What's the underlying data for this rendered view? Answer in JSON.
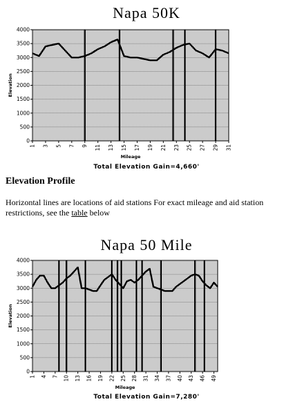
{
  "chart_data": [
    {
      "type": "line",
      "title": "Napa 50K",
      "subtitle": "Total Elevation Gain=4,660'",
      "xlabel": "Mileage",
      "ylabel": "Elevation",
      "ylim": [
        0,
        4000
      ],
      "yticks": [
        0,
        500,
        1000,
        1500,
        2000,
        2500,
        3000,
        3500,
        4000
      ],
      "xlim": [
        1,
        31
      ],
      "xticks": [
        1,
        3,
        5,
        7,
        9,
        11,
        13,
        15,
        17,
        19,
        21,
        23,
        25,
        27,
        29,
        31
      ],
      "grid": true,
      "series": [
        {
          "x": [
            1,
            2,
            3,
            4,
            5,
            6,
            7,
            8,
            9,
            10,
            11,
            12,
            13,
            14,
            15,
            16,
            17,
            18,
            19,
            20,
            21,
            22,
            23,
            24,
            25,
            26,
            27,
            28,
            29,
            30,
            31
          ],
          "y": [
            3150,
            3050,
            3400,
            3450,
            3500,
            3250,
            3000,
            3000,
            3050,
            3150,
            3300,
            3400,
            3550,
            3650,
            3050,
            3000,
            3000,
            2950,
            2900,
            2900,
            3100,
            3200,
            3350,
            3450,
            3500,
            3250,
            3150,
            3000,
            3300,
            3250,
            3150
          ]
        }
      ],
      "aid_station_miles": [
        9,
        14.3,
        22.5,
        24.3,
        29
      ]
    },
    {
      "type": "line",
      "title": "Napa 50 Mile",
      "subtitle": "Total Elevation Gain=7,280'",
      "xlabel": "Mileage",
      "ylabel": "Elevation",
      "ylim": [
        0,
        4000
      ],
      "yticks": [
        0,
        500,
        1000,
        1500,
        2000,
        2500,
        3000,
        3500,
        4000
      ],
      "xlim": [
        1,
        50
      ],
      "xticks": [
        1,
        4,
        7,
        10,
        13,
        16,
        19,
        22,
        25,
        28,
        31,
        34,
        37,
        40,
        43,
        46,
        49
      ],
      "grid": true,
      "series": [
        {
          "x": [
            1,
            2,
            3,
            4,
            5,
            6,
            7,
            8,
            9,
            10,
            11,
            12,
            13,
            14,
            15,
            16,
            17,
            18,
            19,
            20,
            21,
            22,
            23,
            24,
            25,
            26,
            27,
            28,
            29,
            30,
            31,
            32,
            33,
            34,
            35,
            36,
            37,
            38,
            39,
            40,
            41,
            42,
            43,
            44,
            45,
            46,
            47,
            48,
            49,
            50
          ],
          "y": [
            3050,
            3300,
            3450,
            3450,
            3200,
            3000,
            3000,
            3100,
            3200,
            3350,
            3450,
            3600,
            3750,
            3000,
            3000,
            2950,
            2900,
            2900,
            3100,
            3300,
            3400,
            3500,
            3300,
            3150,
            3000,
            3250,
            3300,
            3200,
            3300,
            3450,
            3600,
            3700,
            3050,
            3000,
            2950,
            2900,
            2900,
            2900,
            3050,
            3150,
            3250,
            3350,
            3450,
            3500,
            3450,
            3250,
            3100,
            3000,
            3200,
            3050
          ]
        }
      ],
      "aid_station_miles": [
        8,
        10,
        15,
        22,
        23.5,
        24.5,
        28.5,
        30,
        35,
        44,
        46.5
      ]
    }
  ],
  "profile": {
    "heading": "Elevation Profile",
    "text_before_link": "Horizontal lines are locations of aid stations  For exact mileage and aid station restrictions, see the ",
    "link_text": "table",
    "text_after_link": " below"
  }
}
